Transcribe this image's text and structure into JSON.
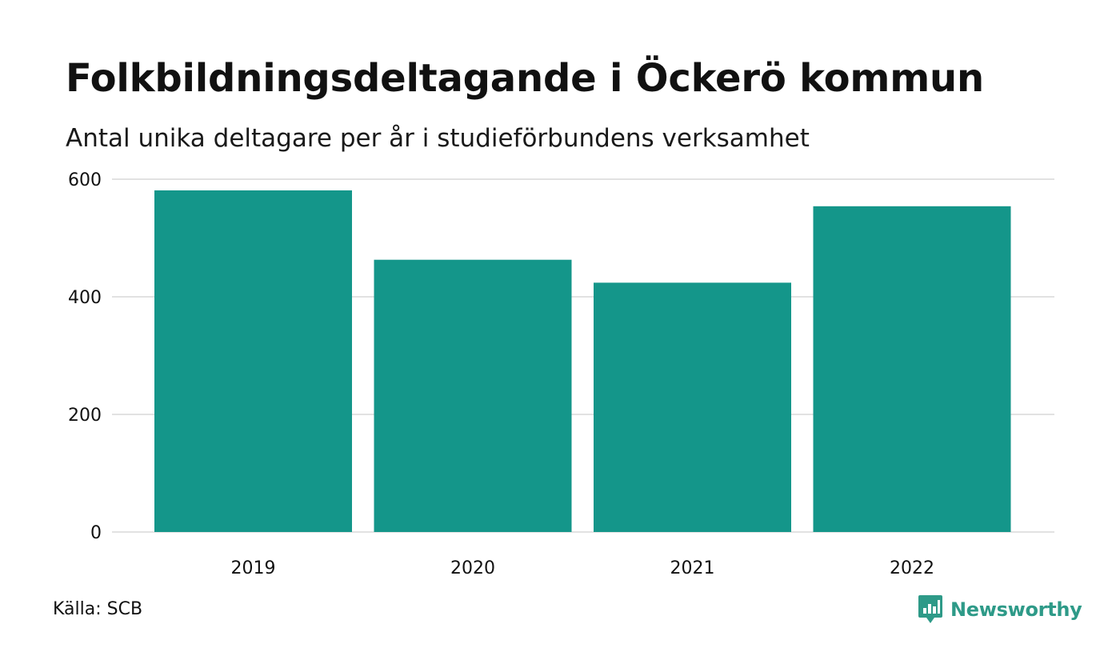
{
  "colors": {
    "bar": "#14968a",
    "grid": "#e2e2e2",
    "brand": "#2e9a88",
    "text": "#111111"
  },
  "chart_data": {
    "type": "bar",
    "title": "Folkbildningsdeltagande i Öckerö kommun",
    "subtitle": "Antal unika deltagare per år i studieförbundens verksamhet",
    "categories": [
      "2019",
      "2020",
      "2021",
      "2022"
    ],
    "values": [
      581,
      463,
      424,
      554
    ],
    "ylim": [
      0,
      600
    ],
    "yticks": [
      0,
      200,
      400,
      600
    ],
    "grid": true
  },
  "footer": {
    "source": "Källa: SCB",
    "brand": "Newsworthy",
    "brand_icon": "newsworthy-logo-icon"
  }
}
